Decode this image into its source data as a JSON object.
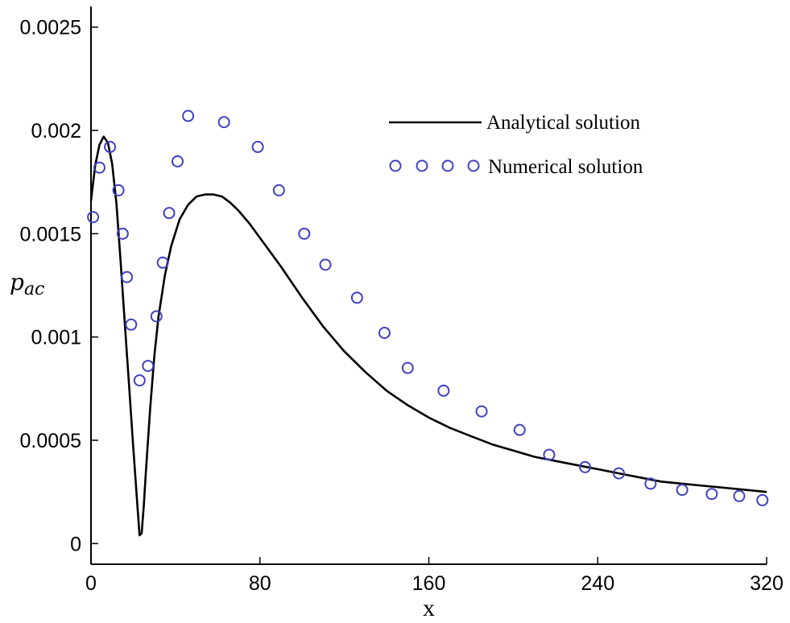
{
  "chart_data": {
    "type": "line",
    "title": "",
    "xlabel": "x",
    "ylabel": "p_ac",
    "ylabel_display": {
      "base": "p",
      "sub": "ac"
    },
    "xlim": [
      0,
      320
    ],
    "ylim": [
      -0.0001,
      0.0026
    ],
    "x_ticks": [
      0,
      80,
      160,
      240,
      320
    ],
    "x_tick_labels": [
      "0",
      "80",
      "160",
      "240",
      "320"
    ],
    "y_ticks": [
      0,
      0.0005,
      0.001,
      0.0015,
      0.002,
      0.0025
    ],
    "y_tick_labels": [
      "0",
      "0.0005",
      "0.001",
      "0.0015",
      "0.002",
      "0.0025"
    ],
    "grid": false,
    "legend_position": "top-right",
    "series": [
      {
        "name": "Analytical solution",
        "style": "line",
        "color": "#000000",
        "x": [
          0,
          2,
          4,
          6,
          8,
          10,
          12,
          14,
          16,
          18,
          20,
          22,
          23,
          24,
          25,
          26,
          28,
          30,
          32,
          35,
          38,
          42,
          46,
          50,
          54,
          58,
          62,
          66,
          70,
          75,
          80,
          90,
          100,
          110,
          120,
          130,
          140,
          150,
          160,
          170,
          180,
          190,
          200,
          210,
          220,
          230,
          240,
          250,
          260,
          270,
          280,
          290,
          300,
          310,
          320
        ],
        "y": [
          0.00166,
          0.00183,
          0.00193,
          0.00197,
          0.00194,
          0.00184,
          0.00165,
          0.00137,
          0.00107,
          0.00077,
          0.00047,
          0.00018,
          4e-05,
          5e-05,
          0.00018,
          0.00035,
          0.00065,
          0.00091,
          0.0011,
          0.0013,
          0.00144,
          0.00157,
          0.00164,
          0.00168,
          0.00169,
          0.00169,
          0.00168,
          0.00165,
          0.00161,
          0.00155,
          0.00148,
          0.00134,
          0.00119,
          0.00105,
          0.00093,
          0.00083,
          0.00074,
          0.00067,
          0.00061,
          0.00056,
          0.00052,
          0.00048,
          0.00045,
          0.00042,
          0.0004,
          0.00038,
          0.00036,
          0.00034,
          0.00032,
          0.0003,
          0.00029,
          0.00028,
          0.00027,
          0.00026,
          0.00025
        ]
      },
      {
        "name": "Numerical solution",
        "style": "markers",
        "marker": "open-circle",
        "color": "#4040c0",
        "x": [
          1,
          4,
          9,
          13,
          15,
          17,
          19,
          23,
          27,
          31,
          34,
          37,
          41,
          46,
          63,
          79,
          89,
          101,
          111,
          126,
          139,
          150,
          167,
          185,
          203,
          217,
          234,
          250,
          265,
          280,
          294,
          307,
          318
        ],
        "y": [
          0.00158,
          0.00182,
          0.00192,
          0.00171,
          0.0015,
          0.00129,
          0.00106,
          0.00079,
          0.00086,
          0.0011,
          0.00136,
          0.0016,
          0.00185,
          0.00207,
          0.00204,
          0.00192,
          0.00171,
          0.0015,
          0.00135,
          0.00119,
          0.00102,
          0.00085,
          0.00074,
          0.00064,
          0.00055,
          0.00043,
          0.00037,
          0.00034,
          0.00029,
          0.00026,
          0.00024,
          0.00023,
          0.00021
        ]
      }
    ]
  }
}
